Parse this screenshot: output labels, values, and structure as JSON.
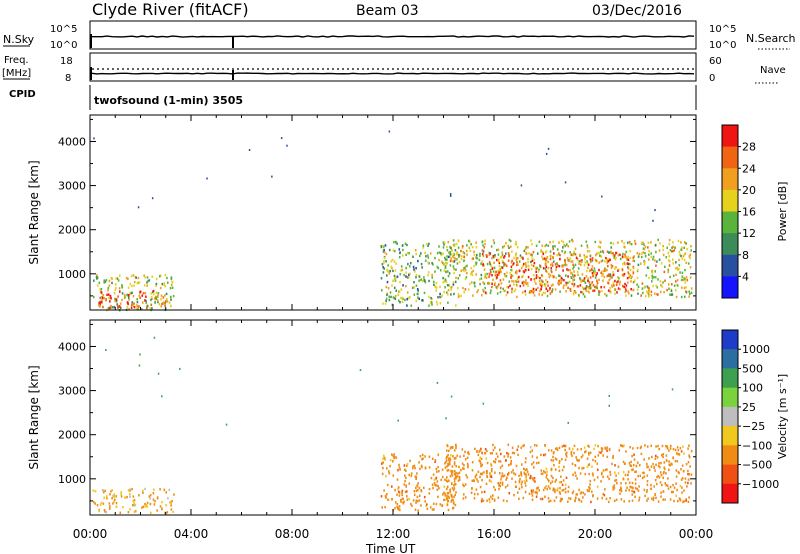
{
  "header": {
    "station": "Clyde River (fitACF)",
    "beam": "Beam 03",
    "date": "03/Dec/2016"
  },
  "noise_panel": {
    "left_label": "N.Sky",
    "right_label": "N.Search",
    "left_ticks": [
      "10^5",
      "10^0"
    ],
    "right_ticks": [
      "10^5",
      "10^0"
    ]
  },
  "freq_panel": {
    "left_label_1": "Freq.",
    "left_label_2": "[MHz]",
    "right_label": "Nave",
    "left_ticks": [
      "18",
      "8"
    ],
    "right_ticks": [
      "60",
      "0"
    ]
  },
  "cpid": {
    "label": "CPID",
    "text": "twofsound (1-min) 3505"
  },
  "colors": {
    "power_scale": [
      "#1414ff",
      "#2850a0",
      "#3c8c5a",
      "#5ab43c",
      "#e6d21e",
      "#f0a01e",
      "#f06414",
      "#f01414"
    ],
    "velocity_scale": [
      "#f01414",
      "#f05014",
      "#f08c14",
      "#f0c81e",
      "#bebebe",
      "#7ad23c",
      "#3ca050",
      "#2d6ea0",
      "#1e3cc8"
    ]
  },
  "chart_data": [
    {
      "type": "heatmap",
      "name": "power",
      "ylabel": "Slant Range [km]",
      "xlabel": "",
      "ylim": [
        180,
        4600
      ],
      "yticks": [
        "1000",
        "2000",
        "3000",
        "4000"
      ],
      "x_ticks": [
        "00:00",
        "04:00",
        "08:00",
        "12:00",
        "16:00",
        "20:00",
        "00:00"
      ],
      "colorbar": {
        "label": "Power [dB]",
        "ticks": [
          "4",
          "8",
          "12",
          "16",
          "20",
          "24",
          "28"
        ]
      },
      "regions": [
        {
          "t0": 0.1,
          "t1": 3.3,
          "r0": 200,
          "r1": 1000,
          "value": 18
        },
        {
          "t0": 0.3,
          "t1": 3.1,
          "r0": 240,
          "r1": 650,
          "value": 28
        },
        {
          "t0": 11.5,
          "t1": 14.5,
          "r0": 300,
          "r1": 1750,
          "value": 16
        },
        {
          "t0": 14.0,
          "t1": 23.8,
          "r0": 500,
          "r1": 1800,
          "value": 20
        },
        {
          "t0": 15.5,
          "t1": 21.5,
          "r0": 600,
          "r1": 1500,
          "value": 28
        }
      ]
    },
    {
      "type": "heatmap",
      "name": "velocity",
      "ylabel": "Slant Range [km]",
      "xlabel": "Time UT",
      "ylim": [
        180,
        4600
      ],
      "yticks": [
        "1000",
        "2000",
        "3000",
        "4000"
      ],
      "x_ticks": [
        "00:00",
        "04:00",
        "08:00",
        "12:00",
        "16:00",
        "20:00",
        "00:00"
      ],
      "colorbar": {
        "label": "Velocity [m s⁻¹]",
        "ticks": [
          "1000",
          "500",
          "100",
          "25",
          "−25",
          "−100",
          "−500",
          "−1000"
        ]
      },
      "regions": [
        {
          "t0": 0.1,
          "t1": 3.3,
          "r0": 250,
          "r1": 800,
          "value": -100
        },
        {
          "t0": 11.5,
          "t1": 14.5,
          "r0": 300,
          "r1": 1600,
          "value": -300
        },
        {
          "t0": 14.0,
          "t1": 23.8,
          "r0": 500,
          "r1": 1800,
          "value": -300
        }
      ]
    }
  ]
}
